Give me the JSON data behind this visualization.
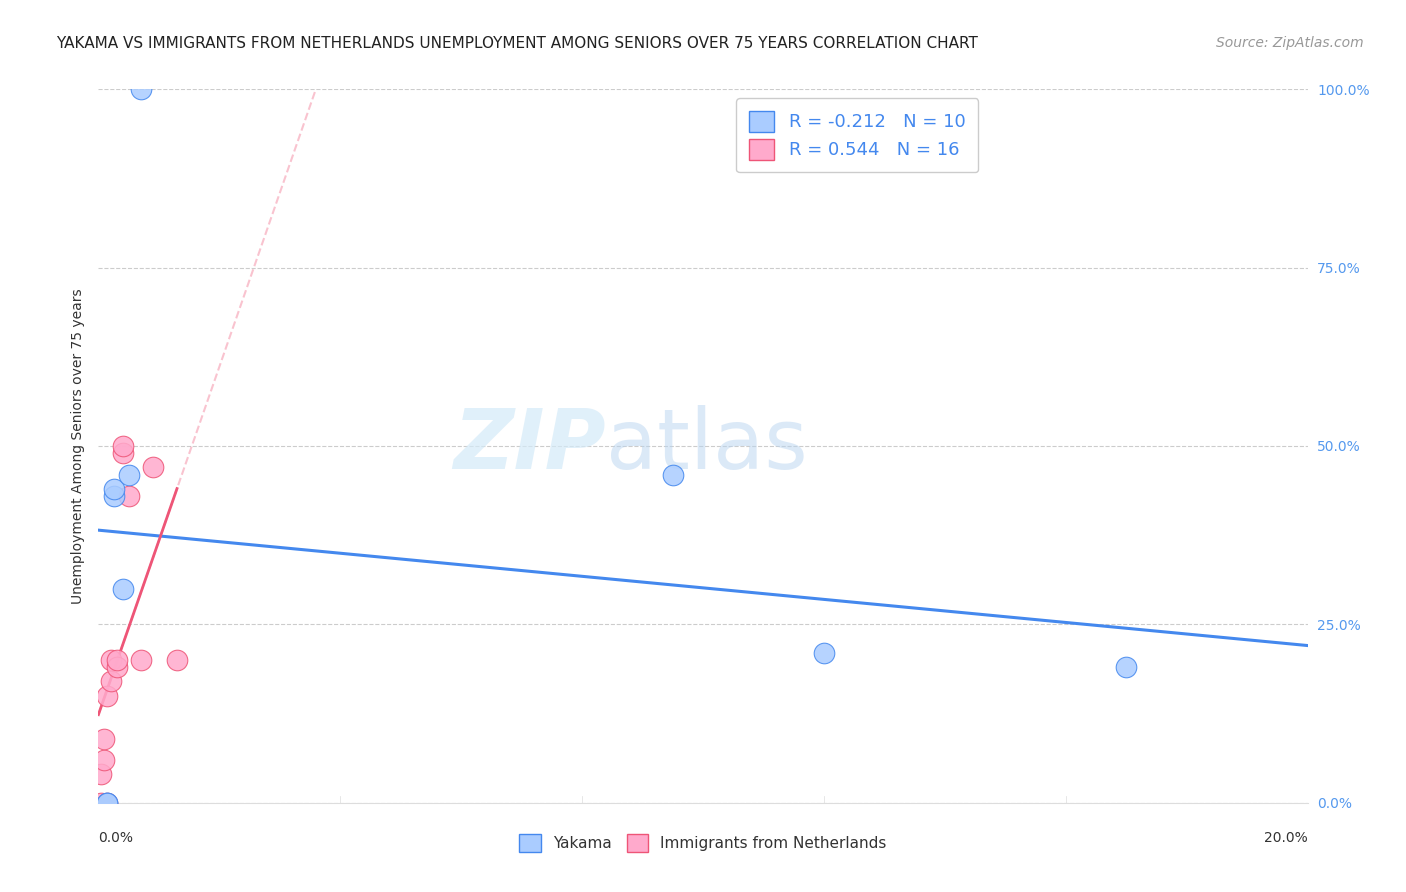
{
  "title": "YAKAMA VS IMMIGRANTS FROM NETHERLANDS UNEMPLOYMENT AMONG SENIORS OVER 75 YEARS CORRELATION CHART",
  "source": "Source: ZipAtlas.com",
  "ylabel": "Unemployment Among Seniors over 75 years",
  "y_ticks_vals": [
    0.0,
    0.25,
    0.5,
    0.75,
    1.0
  ],
  "xlim": [
    0.0,
    0.2
  ],
  "ylim": [
    0.0,
    1.0
  ],
  "yakama_x": [
    0.0015,
    0.0015,
    0.0025,
    0.0025,
    0.004,
    0.005,
    0.007,
    0.095,
    0.12,
    0.17
  ],
  "yakama_y": [
    0.0,
    0.0,
    0.43,
    0.44,
    0.3,
    0.46,
    1.0,
    0.46,
    0.21,
    0.19
  ],
  "netherlands_x": [
    0.0005,
    0.0005,
    0.001,
    0.001,
    0.0015,
    0.0015,
    0.002,
    0.002,
    0.003,
    0.003,
    0.004,
    0.004,
    0.005,
    0.007,
    0.009,
    0.013
  ],
  "netherlands_y": [
    0.0,
    0.04,
    0.06,
    0.09,
    0.0,
    0.15,
    0.17,
    0.2,
    0.19,
    0.2,
    0.49,
    0.5,
    0.43,
    0.2,
    0.47,
    0.2
  ],
  "yakama_color": "#aaccff",
  "netherlands_color": "#ffaacc",
  "yakama_line_color": "#4488ee",
  "netherlands_line_color": "#ee5577",
  "R_yakama": -0.212,
  "N_yakama": 10,
  "R_netherlands": 0.544,
  "N_netherlands": 16,
  "legend_label_yakama": "Yakama",
  "legend_label_netherlands": "Immigrants from Netherlands",
  "watermark_zip": "ZIP",
  "watermark_atlas": "atlas",
  "title_fontsize": 11,
  "source_fontsize": 10,
  "axis_label_fontsize": 10,
  "tick_fontsize": 10,
  "legend_fontsize": 13
}
